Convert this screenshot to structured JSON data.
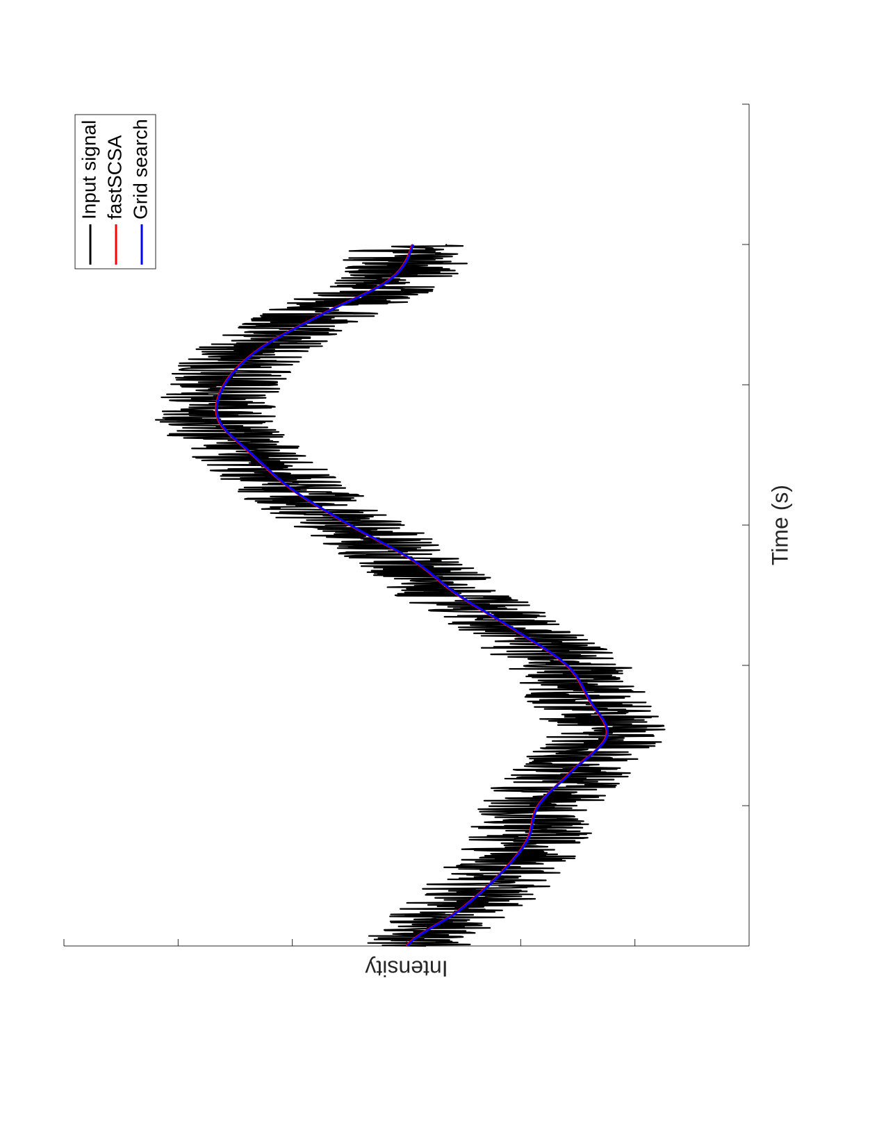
{
  "chart_data": {
    "type": "line",
    "orientation": "rotated-90-cw",
    "title": "",
    "xlabel": "Time (s)",
    "ylabel": "Intensity",
    "xlim": [
      0,
      6
    ],
    "ylim": [
      -3,
      3
    ],
    "x_tick_count": 7,
    "y_tick_count": 7,
    "x_tick_labels": [],
    "y_tick_labels": [],
    "grid": false,
    "legend_position": "top-right",
    "noise_amplitude": 0.55,
    "series": [
      {
        "name": "Input signal",
        "color": "#000000",
        "style": "noisy",
        "x": [
          0,
          0.25,
          0.5,
          0.75,
          1.0,
          1.25,
          1.5,
          1.75,
          2.0,
          2.25,
          2.5,
          2.75,
          3.0,
          3.25,
          3.5,
          3.75,
          4.0,
          4.25,
          4.5,
          4.75,
          5.0
        ],
        "values": [
          0,
          0.45,
          0.8,
          1.05,
          1.15,
          1.45,
          1.75,
          1.6,
          1.4,
          0.95,
          0.45,
          0.05,
          -0.5,
          -1.0,
          -1.35,
          -1.65,
          -1.6,
          -1.3,
          -0.75,
          -0.15,
          0.05
        ]
      },
      {
        "name": "fastSCSA",
        "color": "#ff0000",
        "style": "smooth",
        "x": [
          0,
          0.25,
          0.5,
          0.75,
          1.0,
          1.25,
          1.5,
          1.75,
          2.0,
          2.25,
          2.5,
          2.75,
          3.0,
          3.25,
          3.5,
          3.75,
          4.0,
          4.25,
          4.5,
          4.75,
          5.0
        ],
        "values": [
          0,
          0.45,
          0.8,
          1.05,
          1.15,
          1.45,
          1.75,
          1.6,
          1.4,
          0.95,
          0.45,
          0.05,
          -0.5,
          -1.0,
          -1.35,
          -1.65,
          -1.6,
          -1.3,
          -0.75,
          -0.15,
          0.05
        ]
      },
      {
        "name": "Grid search",
        "color": "#0000ff",
        "style": "smooth",
        "x": [
          0,
          0.25,
          0.5,
          0.75,
          1.0,
          1.25,
          1.5,
          1.75,
          2.0,
          2.25,
          2.5,
          2.75,
          3.0,
          3.25,
          3.5,
          3.75,
          4.0,
          4.25,
          4.5,
          4.75,
          5.0
        ],
        "values": [
          0,
          0.45,
          0.8,
          1.05,
          1.15,
          1.45,
          1.75,
          1.6,
          1.4,
          0.95,
          0.45,
          0.05,
          -0.5,
          -1.0,
          -1.35,
          -1.65,
          -1.6,
          -1.3,
          -0.75,
          -0.15,
          0.05
        ]
      }
    ]
  }
}
